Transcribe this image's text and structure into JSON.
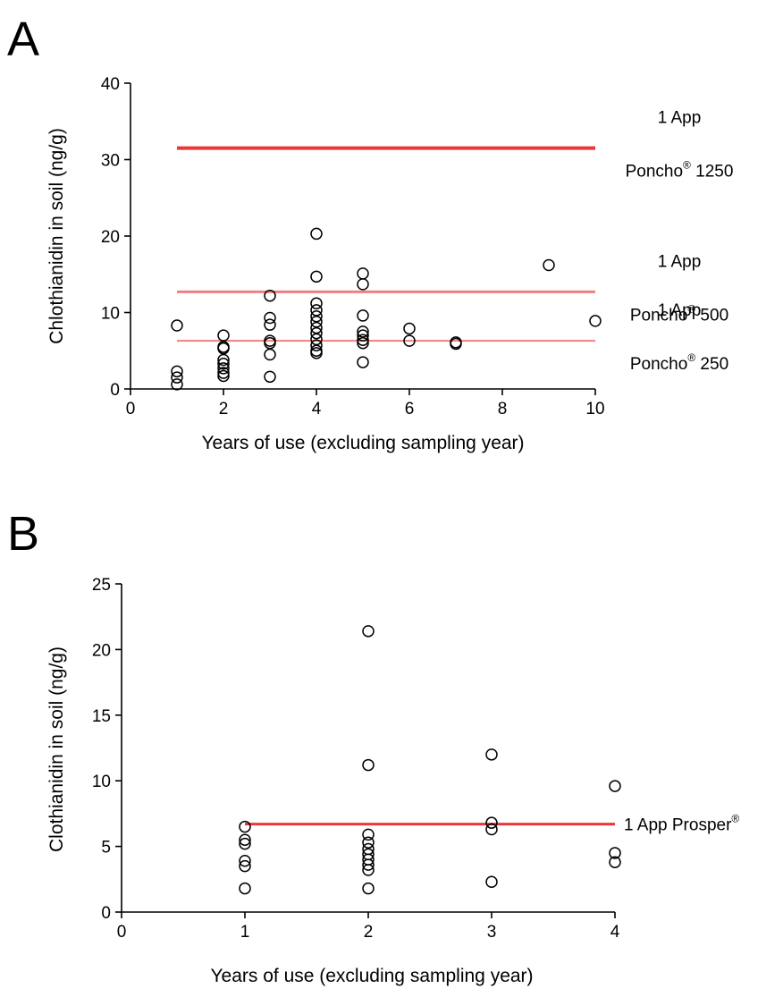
{
  "chart_data": [
    {
      "panel": "A",
      "type": "scatter",
      "xlabel": "Years of use (excluding sampling year)",
      "ylabel": "Chlothianidin in soil (ng/g)",
      "xlim": [
        0,
        10
      ],
      "ylim": [
        0,
        40
      ],
      "xticks": [
        "0",
        "2",
        "4",
        "6",
        "8",
        "10"
      ],
      "yticks": [
        "0",
        "10",
        "20",
        "30",
        "40"
      ],
      "grid": false,
      "points": [
        {
          "x": 1,
          "y": 8.3
        },
        {
          "x": 1,
          "y": 2.3
        },
        {
          "x": 1,
          "y": 1.5
        },
        {
          "x": 1,
          "y": 0.6
        },
        {
          "x": 2,
          "y": 7.0
        },
        {
          "x": 2,
          "y": 5.5
        },
        {
          "x": 2,
          "y": 5.3
        },
        {
          "x": 2,
          "y": 3.8
        },
        {
          "x": 2,
          "y": 3.3
        },
        {
          "x": 2,
          "y": 2.7
        },
        {
          "x": 2,
          "y": 2.1
        },
        {
          "x": 2,
          "y": 1.7
        },
        {
          "x": 3,
          "y": 12.2
        },
        {
          "x": 3,
          "y": 9.3
        },
        {
          "x": 3,
          "y": 8.4
        },
        {
          "x": 3,
          "y": 6.3
        },
        {
          "x": 3,
          "y": 6.0
        },
        {
          "x": 3,
          "y": 4.5
        },
        {
          "x": 3,
          "y": 1.6
        },
        {
          "x": 4,
          "y": 20.3
        },
        {
          "x": 4,
          "y": 14.7
        },
        {
          "x": 4,
          "y": 11.2
        },
        {
          "x": 4,
          "y": 10.3
        },
        {
          "x": 4,
          "y": 9.5
        },
        {
          "x": 4,
          "y": 8.8
        },
        {
          "x": 4,
          "y": 8.0
        },
        {
          "x": 4,
          "y": 7.3
        },
        {
          "x": 4,
          "y": 6.5
        },
        {
          "x": 4,
          "y": 5.7
        },
        {
          "x": 4,
          "y": 5.0
        },
        {
          "x": 4,
          "y": 4.7
        },
        {
          "x": 5,
          "y": 15.1
        },
        {
          "x": 5,
          "y": 13.7
        },
        {
          "x": 5,
          "y": 9.6
        },
        {
          "x": 5,
          "y": 7.5
        },
        {
          "x": 5,
          "y": 7.0
        },
        {
          "x": 5,
          "y": 6.4
        },
        {
          "x": 5,
          "y": 6.0
        },
        {
          "x": 5,
          "y": 3.5
        },
        {
          "x": 6,
          "y": 7.9
        },
        {
          "x": 6,
          "y": 6.3
        },
        {
          "x": 7,
          "y": 6.1
        },
        {
          "x": 7,
          "y": 5.9
        },
        {
          "x": 9,
          "y": 16.2
        },
        {
          "x": 10,
          "y": 8.9
        }
      ],
      "reference_lines": [
        {
          "y": 31.5,
          "x_start": 1,
          "x_end": 10,
          "color": "#e8383a",
          "width": 4,
          "line1": "1 App",
          "line2": "Poncho",
          "mark": "®",
          "line2_suffix": " 1250"
        },
        {
          "y": 12.7,
          "x_start": 1,
          "x_end": 10,
          "color": "#f08080",
          "width": 3,
          "line1": "1 App",
          "line2": "Poncho",
          "mark": "®",
          "line2_suffix": " 500"
        },
        {
          "y": 6.3,
          "x_start": 1,
          "x_end": 10,
          "color": "#f08080",
          "width": 2,
          "line1": "1 App",
          "line2": "Poncho",
          "mark": "®",
          "line2_suffix": " 250"
        }
      ]
    },
    {
      "panel": "B",
      "type": "scatter",
      "xlabel": "Years of use (excluding sampling year)",
      "ylabel": "Clothianidin in soil (ng/g)",
      "xlim": [
        0,
        4
      ],
      "ylim": [
        0,
        25
      ],
      "xticks": [
        "0",
        "1",
        "2",
        "3",
        "4"
      ],
      "yticks": [
        "0",
        "5",
        "10",
        "15",
        "20",
        "25"
      ],
      "grid": false,
      "points": [
        {
          "x": 1,
          "y": 6.5
        },
        {
          "x": 1,
          "y": 5.5
        },
        {
          "x": 1,
          "y": 5.2
        },
        {
          "x": 1,
          "y": 3.9
        },
        {
          "x": 1,
          "y": 3.5
        },
        {
          "x": 1,
          "y": 1.8
        },
        {
          "x": 2,
          "y": 21.4
        },
        {
          "x": 2,
          "y": 11.2
        },
        {
          "x": 2,
          "y": 5.9
        },
        {
          "x": 2,
          "y": 5.3
        },
        {
          "x": 2,
          "y": 4.8
        },
        {
          "x": 2,
          "y": 4.4
        },
        {
          "x": 2,
          "y": 4.0
        },
        {
          "x": 2,
          "y": 3.6
        },
        {
          "x": 2,
          "y": 3.2
        },
        {
          "x": 2,
          "y": 1.8
        },
        {
          "x": 3,
          "y": 12.0
        },
        {
          "x": 3,
          "y": 6.8
        },
        {
          "x": 3,
          "y": 6.3
        },
        {
          "x": 3,
          "y": 2.3
        },
        {
          "x": 4,
          "y": 9.6
        },
        {
          "x": 4,
          "y": 4.5
        },
        {
          "x": 4,
          "y": 3.8
        }
      ],
      "reference_lines": [
        {
          "y": 6.7,
          "x_start": 1,
          "x_end": 4,
          "color": "#e8383a",
          "width": 3,
          "line1": "1 App Prosper",
          "mark": "®"
        }
      ]
    }
  ]
}
